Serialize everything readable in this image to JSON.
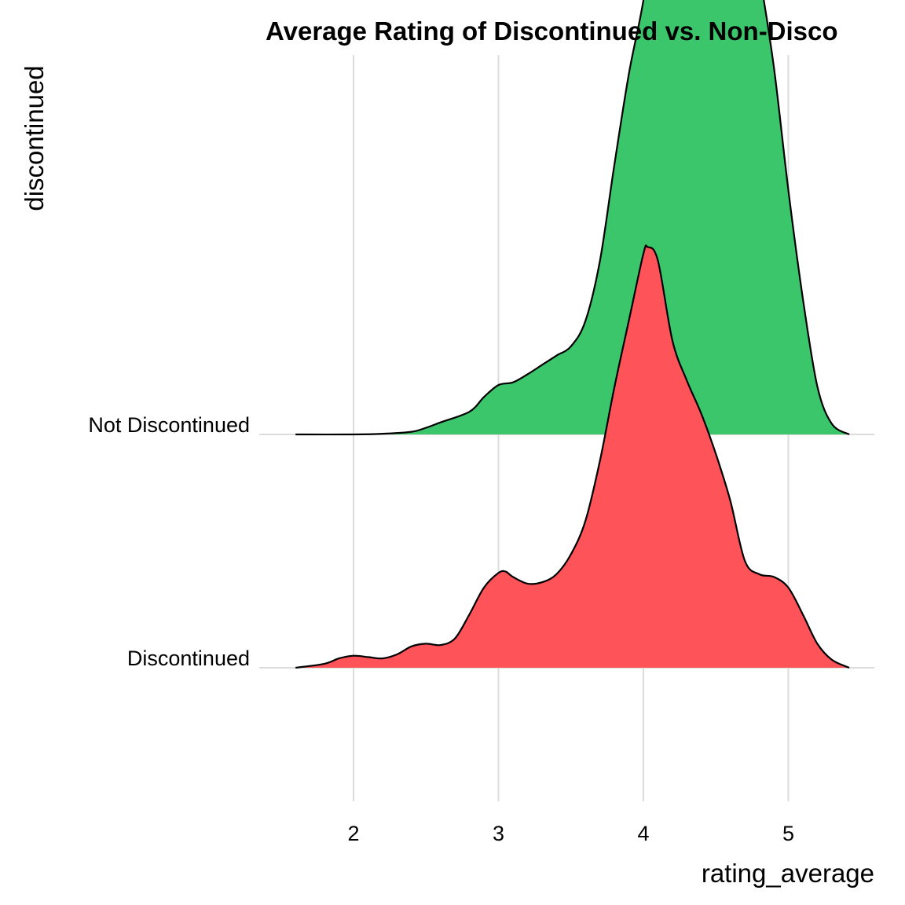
{
  "chart_data": {
    "type": "area",
    "subtype": "ridgeline-density",
    "title": "Average Rating of Discontinued vs. Non-Disco",
    "xlabel": "rating_average",
    "ylabel": "discontinued",
    "xlim": [
      1.6,
      5.42
    ],
    "x_ticks": [
      2,
      3,
      4,
      5
    ],
    "grid": true,
    "legend": "none",
    "series": [
      {
        "name": "Discontinued",
        "color": "#FF535A",
        "x": [
          1.6,
          1.8,
          1.9,
          2.0,
          2.1,
          2.2,
          2.3,
          2.4,
          2.5,
          2.6,
          2.7,
          2.8,
          2.9,
          3.0,
          3.05,
          3.1,
          3.2,
          3.3,
          3.4,
          3.5,
          3.6,
          3.7,
          3.8,
          3.9,
          4.0,
          4.03,
          4.1,
          4.2,
          4.3,
          4.4,
          4.5,
          4.6,
          4.7,
          4.8,
          4.9,
          5.0,
          5.1,
          5.2,
          5.3,
          5.42
        ],
        "density": [
          0.0,
          0.03,
          0.07,
          0.09,
          0.08,
          0.07,
          0.1,
          0.16,
          0.18,
          0.17,
          0.22,
          0.4,
          0.6,
          0.71,
          0.72,
          0.68,
          0.63,
          0.64,
          0.7,
          0.85,
          1.1,
          1.55,
          2.1,
          2.6,
          3.1,
          3.15,
          3.05,
          2.45,
          2.15,
          1.9,
          1.6,
          1.25,
          0.8,
          0.7,
          0.68,
          0.6,
          0.4,
          0.18,
          0.06,
          0.0
        ]
      },
      {
        "name": "Not Discontinued",
        "color": "#3CC66C",
        "x": [
          1.6,
          2.0,
          2.2,
          2.4,
          2.5,
          2.6,
          2.8,
          2.9,
          3.0,
          3.1,
          3.2,
          3.3,
          3.4,
          3.5,
          3.6,
          3.7,
          3.8,
          3.9,
          4.0,
          4.1,
          4.2,
          4.3,
          4.35,
          4.4,
          4.5,
          4.6,
          4.7,
          4.8,
          4.9,
          5.0,
          5.1,
          5.2,
          5.3,
          5.42
        ],
        "density": [
          0.0,
          0.0,
          0.005,
          0.02,
          0.05,
          0.09,
          0.17,
          0.28,
          0.37,
          0.39,
          0.45,
          0.52,
          0.59,
          0.66,
          0.85,
          1.3,
          2.02,
          2.7,
          3.25,
          3.98,
          4.6,
          4.95,
          4.95,
          4.75,
          4.4,
          4.3,
          4.02,
          3.45,
          2.75,
          1.83,
          1.02,
          0.36,
          0.08,
          0.0
        ]
      }
    ]
  }
}
